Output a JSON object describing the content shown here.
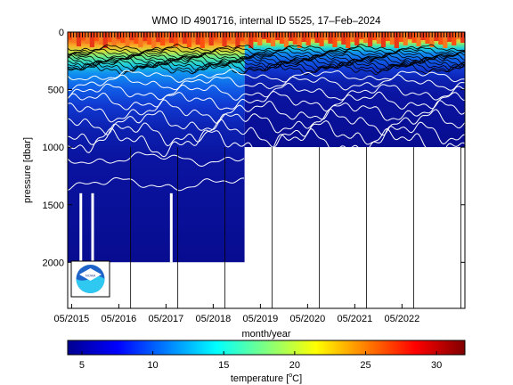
{
  "chart_data": {
    "type": "heatmap",
    "title": "WMO ID 4901716, internal ID 5525, 17–Feb–2024",
    "xlabel": "month/year",
    "ylabel": "pressure [dbar]",
    "x_tick_labels": [
      "05/2015",
      "05/2016",
      "05/2017",
      "05/2018",
      "05/2019",
      "05/2020",
      "05/2021",
      "05/2022"
    ],
    "x_range": [
      "2015-04",
      "2023-09"
    ],
    "y_ticks": [
      0,
      500,
      1000,
      1500,
      2000
    ],
    "y_range": [
      2400,
      0
    ],
    "y_reversed": true,
    "colorbar": {
      "label_prefix": "temperature [",
      "label_unit_sup": "o",
      "label_unit": "C]",
      "ticks": [
        5,
        10,
        15,
        20,
        25,
        30
      ],
      "range": [
        4,
        32
      ],
      "colormap": "jet"
    },
    "profile_depth": [
      {
        "period": "2015-04 to 2018-12",
        "max_pressure": 2000
      },
      {
        "period": "2019-01 to 2023-09",
        "max_pressure": 1000
      }
    ],
    "surface_temperature_range": [
      26,
      30
    ],
    "deep_temperature": 4,
    "isotherm_color": "#ffffff",
    "shallow_isotherm_color": "#000000",
    "logo": "noaa-logo"
  }
}
